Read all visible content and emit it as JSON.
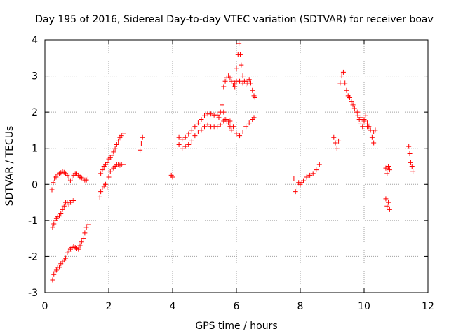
{
  "chart_data": {
    "type": "scatter",
    "title": "Day 195 of 2016, Sidereal Day-to-day VTEC variation (SDTVAR) for receiver boav",
    "xlabel": "GPS time / hours",
    "ylabel": "SDTVAR / TECUs",
    "xlim": [
      0,
      12
    ],
    "ylim": [
      -3,
      4
    ],
    "xticks": [
      "0",
      "2",
      "4",
      "6",
      "8",
      "10",
      "12"
    ],
    "yticks": [
      "-3",
      "-2",
      "-1",
      "0",
      "1",
      "2",
      "3",
      "4"
    ],
    "grid": true,
    "legend": "none",
    "marker": "+",
    "color": "#ff0000",
    "segments": [
      {
        "points": [
          [
            0.22,
            -0.15
          ],
          [
            0.26,
            0.05
          ],
          [
            0.3,
            0.15
          ],
          [
            0.35,
            0.2
          ],
          [
            0.4,
            0.28
          ],
          [
            0.45,
            0.3
          ],
          [
            0.5,
            0.32
          ],
          [
            0.55,
            0.35
          ],
          [
            0.6,
            0.33
          ],
          [
            0.65,
            0.3
          ],
          [
            0.7,
            0.25
          ],
          [
            0.75,
            0.15
          ],
          [
            0.8,
            0.1
          ],
          [
            0.85,
            0.15
          ],
          [
            0.9,
            0.25
          ],
          [
            0.95,
            0.3
          ],
          [
            1.0,
            0.3
          ],
          [
            1.05,
            0.25
          ],
          [
            1.1,
            0.2
          ],
          [
            1.15,
            0.18
          ],
          [
            1.2,
            0.15
          ],
          [
            1.25,
            0.12
          ],
          [
            1.3,
            0.12
          ],
          [
            1.35,
            0.15
          ]
        ]
      },
      {
        "points": [
          [
            0.24,
            -1.2
          ],
          [
            0.28,
            -1.1
          ],
          [
            0.32,
            -1.0
          ],
          [
            0.36,
            -0.95
          ],
          [
            0.4,
            -0.9
          ],
          [
            0.45,
            -0.88
          ],
          [
            0.5,
            -0.8
          ],
          [
            0.55,
            -0.7
          ],
          [
            0.6,
            -0.6
          ],
          [
            0.65,
            -0.5
          ],
          [
            0.7,
            -0.5
          ],
          [
            0.75,
            -0.55
          ],
          [
            0.8,
            -0.5
          ],
          [
            0.85,
            -0.45
          ],
          [
            0.9,
            -0.45
          ]
        ]
      },
      {
        "points": [
          [
            0.24,
            -2.65
          ],
          [
            0.28,
            -2.5
          ],
          [
            0.32,
            -2.42
          ],
          [
            0.36,
            -2.38
          ],
          [
            0.4,
            -2.3
          ],
          [
            0.45,
            -2.3
          ],
          [
            0.5,
            -2.2
          ],
          [
            0.55,
            -2.15
          ],
          [
            0.6,
            -2.1
          ],
          [
            0.65,
            -2.05
          ],
          [
            0.7,
            -1.9
          ],
          [
            0.75,
            -1.85
          ],
          [
            0.8,
            -1.8
          ],
          [
            0.85,
            -1.75
          ],
          [
            0.9,
            -1.72
          ],
          [
            0.95,
            -1.75
          ],
          [
            1.0,
            -1.78
          ],
          [
            1.05,
            -1.8
          ],
          [
            1.1,
            -1.7
          ],
          [
            1.15,
            -1.6
          ],
          [
            1.2,
            -1.5
          ],
          [
            1.25,
            -1.35
          ],
          [
            1.3,
            -1.2
          ],
          [
            1.35,
            -1.12
          ]
        ]
      },
      {
        "points": [
          [
            1.72,
            -0.35
          ],
          [
            1.75,
            -0.2
          ],
          [
            1.8,
            -0.1
          ],
          [
            1.85,
            -0.05
          ],
          [
            1.9,
            0.0
          ],
          [
            1.95,
            -0.1
          ],
          [
            2.0,
            0.2
          ],
          [
            2.05,
            0.35
          ],
          [
            2.1,
            0.42
          ],
          [
            2.15,
            0.45
          ],
          [
            2.2,
            0.5
          ],
          [
            2.25,
            0.55
          ],
          [
            2.3,
            0.55
          ],
          [
            2.35,
            0.53
          ],
          [
            2.4,
            0.55
          ],
          [
            2.45,
            0.55
          ]
        ]
      },
      {
        "points": [
          [
            1.75,
            0.3
          ],
          [
            1.8,
            0.4
          ],
          [
            1.85,
            0.5
          ],
          [
            1.9,
            0.55
          ],
          [
            1.95,
            0.6
          ],
          [
            2.0,
            0.7
          ],
          [
            2.05,
            0.75
          ],
          [
            2.1,
            0.8
          ],
          [
            2.15,
            0.9
          ],
          [
            2.2,
            1.0
          ],
          [
            2.25,
            1.1
          ],
          [
            2.3,
            1.2
          ],
          [
            2.35,
            1.3
          ],
          [
            2.4,
            1.35
          ],
          [
            2.45,
            1.4
          ]
        ]
      },
      {
        "points": [
          [
            2.98,
            0.95
          ],
          [
            3.02,
            1.12
          ],
          [
            3.06,
            1.3
          ]
        ]
      },
      {
        "points": [
          [
            3.96,
            0.25
          ],
          [
            4.0,
            0.2
          ]
        ]
      },
      {
        "points": [
          [
            4.2,
            1.3
          ],
          [
            4.3,
            1.25
          ],
          [
            4.4,
            1.3
          ],
          [
            4.5,
            1.4
          ],
          [
            4.6,
            1.5
          ],
          [
            4.7,
            1.6
          ],
          [
            4.8,
            1.7
          ],
          [
            4.9,
            1.8
          ],
          [
            5.0,
            1.9
          ],
          [
            5.1,
            1.95
          ],
          [
            5.2,
            1.95
          ],
          [
            5.3,
            1.92
          ],
          [
            5.4,
            1.92
          ]
        ]
      },
      {
        "points": [
          [
            4.2,
            1.1
          ],
          [
            4.3,
            1.0
          ],
          [
            4.4,
            1.05
          ],
          [
            4.5,
            1.1
          ],
          [
            4.6,
            1.2
          ],
          [
            4.7,
            1.35
          ],
          [
            4.8,
            1.45
          ],
          [
            4.9,
            1.5
          ],
          [
            5.0,
            1.6
          ],
          [
            5.1,
            1.65
          ],
          [
            5.2,
            1.6
          ],
          [
            5.3,
            1.6
          ],
          [
            5.4,
            1.6
          ],
          [
            5.5,
            1.65
          ],
          [
            5.6,
            1.75
          ],
          [
            5.7,
            1.8
          ],
          [
            5.8,
            1.75
          ],
          [
            5.9,
            1.6
          ],
          [
            6.0,
            1.4
          ],
          [
            6.1,
            1.35
          ],
          [
            6.2,
            1.45
          ],
          [
            6.3,
            1.6
          ],
          [
            6.4,
            1.7
          ],
          [
            6.5,
            1.8
          ],
          [
            6.55,
            1.85
          ]
        ]
      },
      {
        "points": [
          [
            5.45,
            1.85
          ],
          [
            5.5,
            2.0
          ],
          [
            5.55,
            2.2
          ],
          [
            5.6,
            2.0
          ],
          [
            5.65,
            1.8
          ],
          [
            5.7,
            1.75
          ],
          [
            5.75,
            1.7
          ],
          [
            5.8,
            1.6
          ],
          [
            5.85,
            1.5
          ]
        ]
      },
      {
        "points": [
          [
            5.6,
            2.7
          ],
          [
            5.65,
            2.85
          ],
          [
            5.7,
            2.95
          ],
          [
            5.75,
            3.0
          ],
          [
            5.8,
            2.95
          ],
          [
            5.85,
            2.85
          ],
          [
            5.9,
            2.75
          ],
          [
            5.95,
            2.7
          ],
          [
            6.0,
            3.2
          ],
          [
            6.05,
            3.6
          ],
          [
            6.08,
            3.9
          ],
          [
            6.12,
            3.6
          ],
          [
            6.15,
            3.3
          ],
          [
            6.2,
            3.0
          ],
          [
            6.25,
            2.85
          ],
          [
            6.3,
            2.85
          ],
          [
            6.35,
            2.8
          ],
          [
            6.4,
            2.9
          ],
          [
            6.45,
            2.8
          ],
          [
            6.5,
            2.6
          ],
          [
            6.55,
            2.45
          ],
          [
            6.58,
            2.4
          ]
        ]
      },
      {
        "points": [
          [
            5.95,
            2.8
          ],
          [
            6.0,
            2.85
          ],
          [
            6.1,
            2.85
          ],
          [
            6.2,
            2.8
          ],
          [
            6.3,
            2.75
          ]
        ]
      },
      {
        "points": [
          [
            7.8,
            0.15
          ],
          [
            7.85,
            -0.2
          ],
          [
            7.9,
            -0.1
          ],
          [
            7.95,
            0.05
          ],
          [
            8.0,
            0.0
          ],
          [
            8.05,
            0.05
          ],
          [
            8.1,
            0.1
          ],
          [
            8.2,
            0.2
          ],
          [
            8.3,
            0.25
          ],
          [
            8.4,
            0.3
          ],
          [
            8.5,
            0.4
          ],
          [
            8.6,
            0.55
          ]
        ]
      },
      {
        "points": [
          [
            9.05,
            1.3
          ],
          [
            9.1,
            1.15
          ],
          [
            9.15,
            1.0
          ],
          [
            9.2,
            1.2
          ]
        ]
      },
      {
        "points": [
          [
            9.25,
            2.8
          ],
          [
            9.3,
            3.0
          ],
          [
            9.35,
            3.1
          ],
          [
            9.4,
            2.8
          ],
          [
            9.45,
            2.6
          ],
          [
            9.5,
            2.45
          ],
          [
            9.55,
            2.4
          ],
          [
            9.6,
            2.3
          ],
          [
            9.65,
            2.2
          ],
          [
            9.7,
            2.1
          ],
          [
            9.75,
            2.0
          ],
          [
            9.8,
            1.9
          ],
          [
            9.85,
            1.8
          ],
          [
            9.9,
            1.7
          ],
          [
            9.95,
            1.6
          ],
          [
            10.0,
            1.8
          ],
          [
            10.05,
            1.9
          ],
          [
            10.1,
            1.7
          ],
          [
            10.15,
            1.6
          ],
          [
            10.2,
            1.5
          ],
          [
            10.25,
            1.3
          ],
          [
            10.3,
            1.15
          ],
          [
            10.35,
            1.5
          ]
        ]
      },
      {
        "points": [
          [
            9.8,
            2.0
          ],
          [
            9.9,
            1.85
          ],
          [
            10.0,
            1.75
          ],
          [
            10.1,
            1.6
          ],
          [
            10.2,
            1.5
          ],
          [
            10.3,
            1.45
          ]
        ]
      },
      {
        "points": [
          [
            10.68,
            0.45
          ],
          [
            10.72,
            0.3
          ],
          [
            10.76,
            0.5
          ],
          [
            10.8,
            0.4
          ]
        ]
      },
      {
        "points": [
          [
            10.68,
            -0.4
          ],
          [
            10.72,
            -0.6
          ],
          [
            10.76,
            -0.5
          ],
          [
            10.8,
            -0.7
          ]
        ]
      },
      {
        "points": [
          [
            11.4,
            1.05
          ],
          [
            11.43,
            0.85
          ],
          [
            11.46,
            0.6
          ],
          [
            11.5,
            0.5
          ],
          [
            11.53,
            0.35
          ]
        ]
      }
    ]
  }
}
